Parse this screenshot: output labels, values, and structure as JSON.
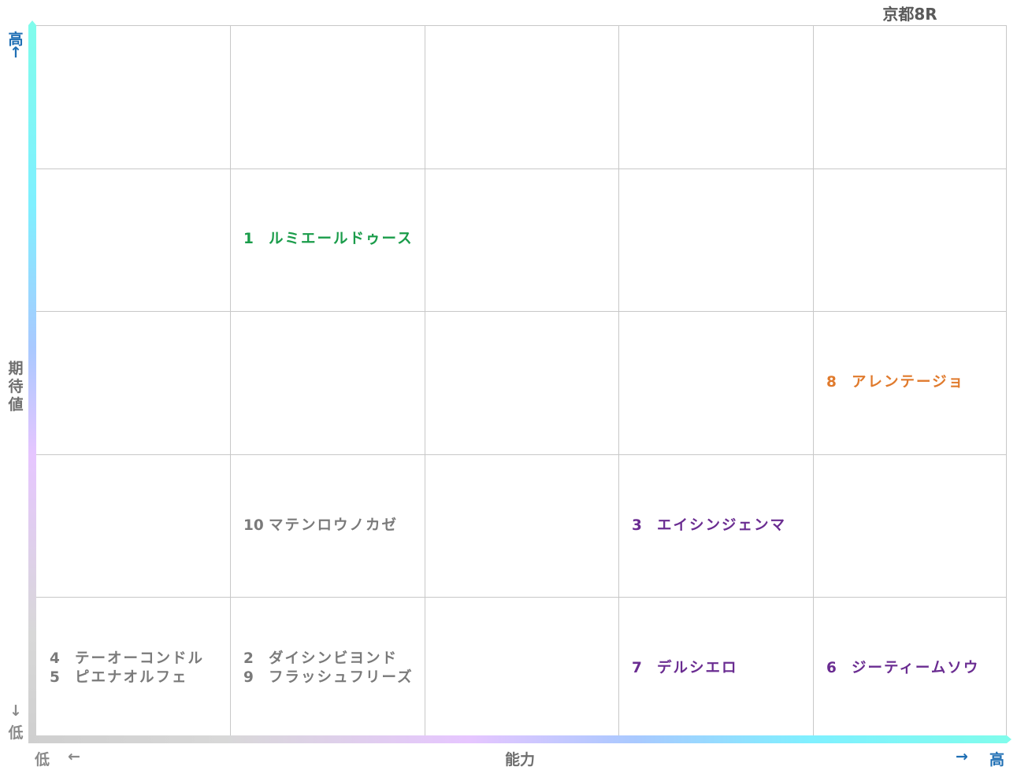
{
  "title": "京都8R",
  "axes": {
    "x_label": "能力",
    "y_label": "期待値",
    "x_low_label": "低",
    "x_low_arrow": "←",
    "x_high_arrow": "→",
    "x_high_label": "高",
    "y_high_label": "高",
    "y_high_arrow": "↑",
    "y_low_arrow": "↓",
    "y_low_label": "低"
  },
  "colors": {
    "grid": "#c8c8c8",
    "axis_gradient": [
      "#80fcec",
      "#7ff0ff",
      "#a9c9ff",
      "#e6c6ff",
      "#d6d6d6"
    ],
    "high_label": "#1f6fb4",
    "muted_label": "#8a8a8a",
    "green": "#1a9c4a",
    "orange": "#e07a2c",
    "purple": "#6a2c91",
    "gray": "#7a7a7a"
  },
  "chart_data": {
    "type": "table",
    "columns": 5,
    "rows": 5,
    "cells": [
      {
        "col": 1,
        "row": 3,
        "color": "green",
        "entries": [
          {
            "num": "1",
            "name": "ルミエールドゥース"
          }
        ]
      },
      {
        "col": 4,
        "row": 2,
        "color": "orange",
        "entries": [
          {
            "num": "8",
            "name": "アレンテージョ"
          }
        ]
      },
      {
        "col": 1,
        "row": 1,
        "color": "gray",
        "entries": [
          {
            "num": "10",
            "name": "マテンロウノカゼ"
          }
        ]
      },
      {
        "col": 3,
        "row": 1,
        "color": "purple",
        "entries": [
          {
            "num": "3",
            "name": "エイシンジェンマ"
          }
        ]
      },
      {
        "col": 0,
        "row": 0,
        "color": "gray",
        "entries": [
          {
            "num": "4",
            "name": "テーオーコンドル"
          },
          {
            "num": "5",
            "name": "ピエナオルフェ"
          }
        ]
      },
      {
        "col": 1,
        "row": 0,
        "color": "gray",
        "entries": [
          {
            "num": "2",
            "name": "ダイシンビヨンド"
          },
          {
            "num": "9",
            "name": "フラッシュフリーズ"
          }
        ]
      },
      {
        "col": 3,
        "row": 0,
        "color": "purple",
        "entries": [
          {
            "num": "7",
            "name": "デルシエロ"
          }
        ]
      },
      {
        "col": 4,
        "row": 0,
        "color": "purple",
        "entries": [
          {
            "num": "6",
            "name": "ジーティームソウ"
          }
        ]
      }
    ]
  }
}
